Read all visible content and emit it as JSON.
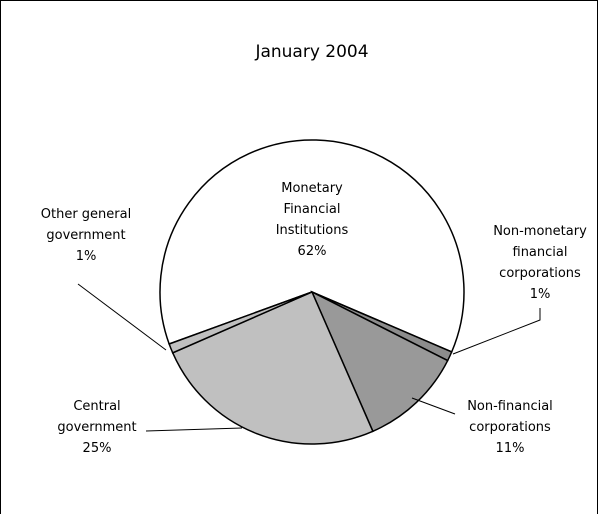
{
  "chart_data": {
    "type": "pie",
    "title": "January 2004",
    "categories": [
      "Monetary\nFinancial\nInstitutions",
      "Non-monetary\nfinancial\ncorporations",
      "Non-financial\ncorporations",
      "Central\ngovernment",
      "Other general\ngovernment"
    ],
    "values": [
      62,
      1,
      11,
      25,
      1
    ],
    "value_labels": [
      "62%",
      "1%",
      "11%",
      "25%",
      "1%"
    ],
    "colors": [
      "#ffffff",
      "#8c8c8c",
      "#999999",
      "#c0c0c0",
      "#c0c0c0"
    ]
  }
}
